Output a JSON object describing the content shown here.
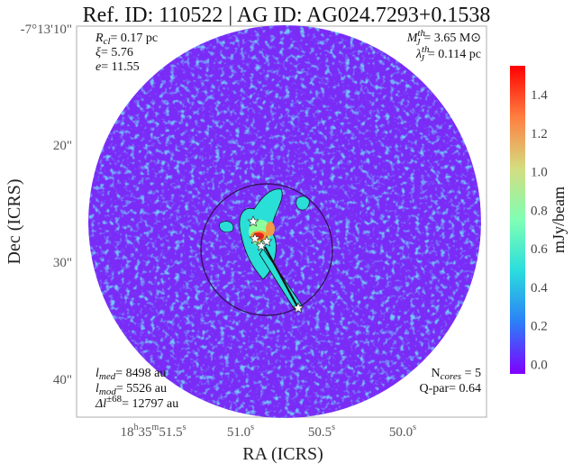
{
  "chart_data": {
    "type": "heatmap",
    "title": "Ref. ID: 110522 | AG ID: AG024.7293+0.1538",
    "xlabel": "RA (ICRS)",
    "ylabel": "Dec (ICRS)",
    "x_ticks": [
      {
        "main": "18",
        "h": "h",
        "mid": "35",
        "m": "m",
        "sec": "51.5",
        "s": "s"
      },
      {
        "sec": "51.0",
        "s": "s"
      },
      {
        "sec": "50.5",
        "s": "s"
      },
      {
        "sec": "50.0",
        "s": "s"
      }
    ],
    "y_ticks": [
      "-7°13'10\"",
      "20\"",
      "30\"",
      "40\""
    ],
    "colorbar": {
      "label": "mJy/beam",
      "ticks": [
        "0.0",
        "0.2",
        "0.4",
        "0.6",
        "0.8",
        "1.0",
        "1.2",
        "1.4"
      ],
      "tick_values": [
        0.0,
        0.2,
        0.4,
        0.6,
        0.8,
        1.0,
        1.2,
        1.4
      ],
      "range": [
        -0.05,
        1.55
      ],
      "colormap": "rainbow",
      "colors": [
        "#7f00ff",
        "#2c7ef8",
        "#2adddd",
        "#80ffb4",
        "#d4dd80",
        "#ff7f40",
        "#ff0000"
      ]
    },
    "cores_count": 5,
    "annotations": {
      "top_left": [
        {
          "sym": "R",
          "sub": "cl",
          "val": "= 0.17 pc"
        },
        {
          "sym": "ξ",
          "val": "= 5.76"
        },
        {
          "sym": "e",
          "val": "= 11.55"
        }
      ],
      "top_right": [
        {
          "sym": "M",
          "sup": "th",
          "sub": "J",
          "val": "= 3.65 M⊙"
        },
        {
          "sym": "λ",
          "sup": "th",
          "sub": "J",
          "val": "= 0.114 pc"
        }
      ],
      "bottom_left": [
        {
          "sym": "l",
          "sub": "med",
          "val": "= 8498 au"
        },
        {
          "sym": "l",
          "sub": "mod",
          "val": "= 5526 au"
        },
        {
          "sym": "Δl",
          "sup": "±68",
          "val": "= 12797 au"
        }
      ],
      "bottom_right": [
        {
          "pre": "N",
          "sub": "cores",
          "val": " = 5"
        },
        {
          "pre": "Q-par= 0.64"
        }
      ]
    }
  }
}
